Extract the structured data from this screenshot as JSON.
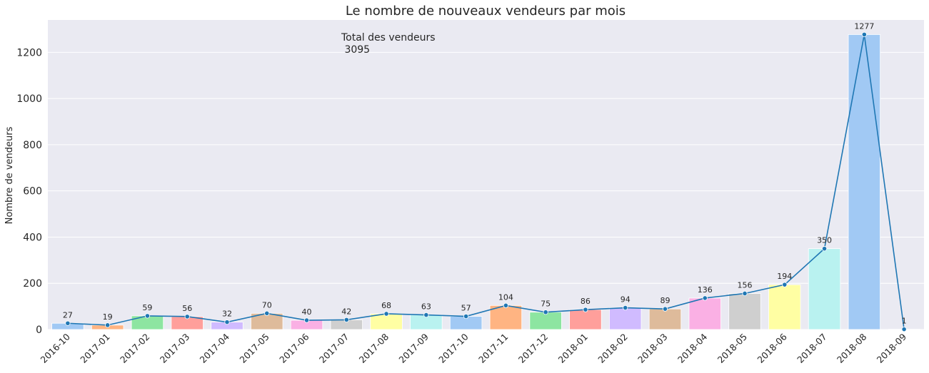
{
  "chart_data": {
    "type": "bar",
    "title": "Le nombre de nouveaux vendeurs par mois",
    "xlabel": "",
    "ylabel": "Nombre de vendeurs",
    "categories": [
      "2016-10",
      "2017-01",
      "2017-02",
      "2017-03",
      "2017-04",
      "2017-05",
      "2017-06",
      "2017-07",
      "2017-08",
      "2017-09",
      "2017-10",
      "2017-11",
      "2017-12",
      "2018-01",
      "2018-02",
      "2018-03",
      "2018-04",
      "2018-05",
      "2018-06",
      "2018-07",
      "2018-08",
      "2018-09"
    ],
    "values": [
      27,
      19,
      59,
      56,
      32,
      70,
      40,
      42,
      68,
      63,
      57,
      104,
      75,
      86,
      94,
      89,
      136,
      156,
      194,
      350,
      1277,
      1
    ],
    "ylim": [
      0,
      1340
    ],
    "yticks": [
      0,
      200,
      400,
      600,
      800,
      1000,
      1200
    ],
    "grid": true,
    "line_overlay": true,
    "annotation": {
      "line1": "Total des vendeurs",
      "line2": " 3095"
    },
    "colors": {
      "background": "#eaeaf2",
      "grid": "#ffffff",
      "line": "#1f77b4",
      "bars": [
        "#a1c9f4",
        "#ffb482",
        "#8de5a1",
        "#ff9f9b",
        "#d0bbff",
        "#debb9b",
        "#fab0e4",
        "#cfcfcf",
        "#fffea3",
        "#b9f2f0"
      ]
    }
  }
}
